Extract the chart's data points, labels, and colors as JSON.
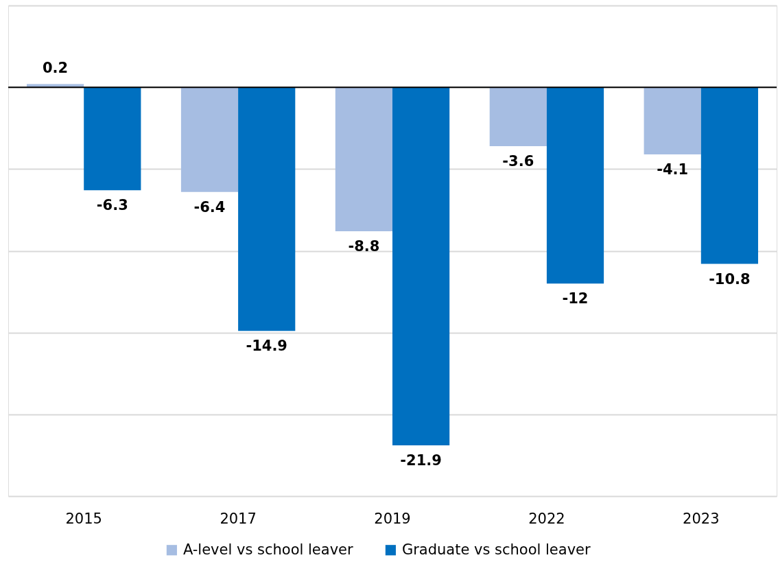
{
  "chart_data": {
    "type": "bar",
    "categories": [
      "2015",
      "2017",
      "2019",
      "2022",
      "2023"
    ],
    "series": [
      {
        "name": "A-level vs school leaver",
        "color": "#a6bde2",
        "values": [
          0.2,
          -6.4,
          -8.8,
          -3.6,
          -4.1
        ]
      },
      {
        "name": "Graduate vs school leaver",
        "color": "#0070c0",
        "values": [
          -6.3,
          -14.9,
          -21.9,
          -12,
          -10.8
        ]
      }
    ],
    "ylim": [
      -25,
      5
    ],
    "yticks": [
      {
        "value": 5,
        "label": null
      },
      {
        "value": 0,
        "label": null
      },
      {
        "value": -5,
        "label": null
      },
      {
        "value": -10,
        "label": null
      },
      {
        "value": -15,
        "label": null
      },
      {
        "value": -20,
        "label": null
      },
      {
        "value": -25,
        "label": null
      }
    ],
    "ref_lines": [
      {
        "axis": "y",
        "value": 0,
        "color": "#000000"
      }
    ],
    "grid": "y",
    "legend": "bottom",
    "tick_labels": "x",
    "data_labels": true
  }
}
